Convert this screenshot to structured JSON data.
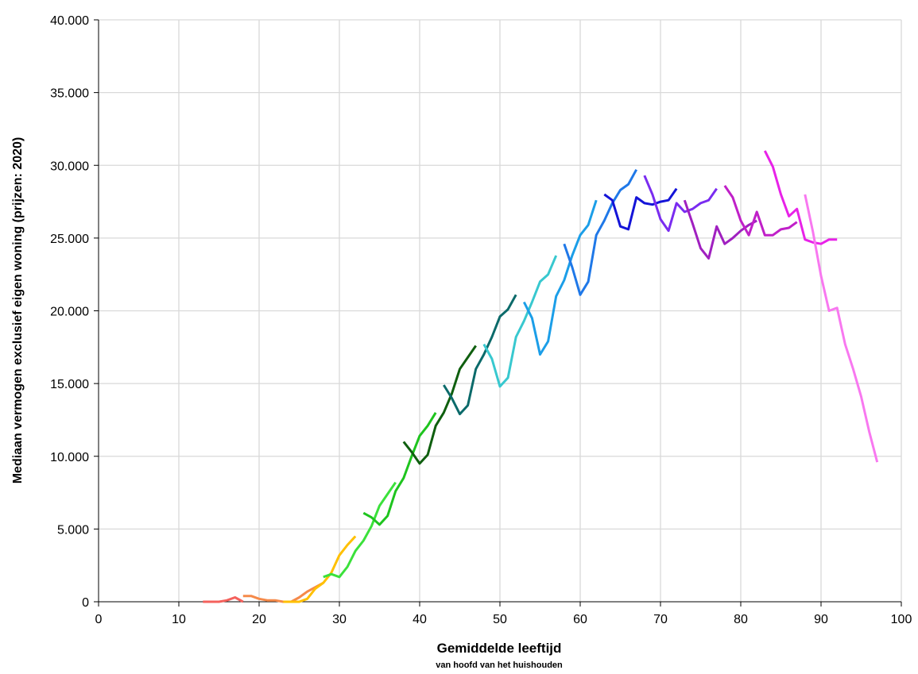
{
  "chart_data": {
    "type": "line",
    "title": "",
    "xlabel": "Gemiddelde leeftijd",
    "xlabel_sub": "van hoofd van het huishouden",
    "ylabel": "Mediaan vermogen exclusief eigen woning (prijzen: 2020)",
    "xlim": [
      0,
      100
    ],
    "ylim": [
      0,
      40000
    ],
    "grid": true,
    "legend": "none",
    "x_ticks": [
      "0",
      "10",
      "20",
      "30",
      "40",
      "50",
      "60",
      "70",
      "80",
      "90",
      "100"
    ],
    "y_ticks": [
      "0",
      "5.000",
      "10.000",
      "15.000",
      "20.000",
      "25.000",
      "30.000",
      "35.000",
      "40.000"
    ],
    "series": [
      {
        "color": "#f4615c",
        "x": [
          13,
          14,
          15,
          16,
          17,
          18
        ],
        "y": [
          0,
          0,
          0,
          100,
          300,
          0
        ]
      },
      {
        "color": "#f58a4a",
        "x": [
          18,
          19,
          20,
          21,
          22,
          23,
          24,
          25,
          26,
          27,
          28
        ],
        "y": [
          400,
          400,
          200,
          100,
          100,
          0,
          0,
          300,
          700,
          1000,
          1300
        ]
      },
      {
        "color": "#ffc000",
        "x": [
          23,
          24,
          25,
          26,
          27,
          28,
          29,
          30,
          31,
          32
        ],
        "y": [
          0,
          0,
          0,
          200,
          900,
          1300,
          2000,
          3200,
          3900,
          4500
        ]
      },
      {
        "color": "#3be13b",
        "x": [
          28,
          29,
          30,
          31,
          32,
          33,
          34,
          35,
          36,
          37
        ],
        "y": [
          1700,
          1900,
          1700,
          2400,
          3500,
          4200,
          5200,
          6600,
          7400,
          8200
        ]
      },
      {
        "color": "#1ec41e",
        "x": [
          33,
          34,
          35,
          36,
          37,
          38,
          39,
          40,
          41,
          42
        ],
        "y": [
          6100,
          5800,
          5300,
          5900,
          7600,
          8500,
          10000,
          11400,
          12100,
          13000
        ]
      },
      {
        "color": "#0f5f0f",
        "x": [
          38,
          39,
          40,
          41,
          42,
          43,
          44,
          45,
          46,
          47
        ],
        "y": [
          11000,
          10300,
          9500,
          10100,
          12100,
          13000,
          14300,
          16000,
          16800,
          17600
        ]
      },
      {
        "color": "#0b6a6a",
        "x": [
          43,
          44,
          45,
          46,
          47,
          48,
          49,
          50,
          51,
          52
        ],
        "y": [
          14900,
          14000,
          12900,
          13500,
          16000,
          17000,
          18200,
          19600,
          20100,
          21100
        ]
      },
      {
        "color": "#38c8cf",
        "x": [
          48,
          49,
          50,
          51,
          52,
          53,
          54,
          55,
          56,
          57
        ],
        "y": [
          17700,
          16700,
          14800,
          15400,
          18200,
          19300,
          20600,
          22000,
          22500,
          23800
        ]
      },
      {
        "color": "#1b9ee8",
        "x": [
          53,
          54,
          55,
          56,
          57,
          58,
          59,
          60,
          61,
          62
        ],
        "y": [
          20600,
          19500,
          17000,
          17900,
          21000,
          22100,
          23800,
          25200,
          25900,
          27600
        ]
      },
      {
        "color": "#1f78e8",
        "x": [
          58,
          59,
          60,
          61,
          62,
          63,
          64,
          65,
          66,
          67
        ],
        "y": [
          24600,
          23000,
          21100,
          22000,
          25200,
          26200,
          27400,
          28300,
          28700,
          29700
        ]
      },
      {
        "color": "#1414d8",
        "x": [
          63,
          64,
          65,
          66,
          67,
          68,
          69,
          70,
          71,
          72
        ],
        "y": [
          28000,
          27600,
          25800,
          25600,
          27800,
          27400,
          27300,
          27500,
          27600,
          28400
        ]
      },
      {
        "color": "#7a2cf0",
        "x": [
          68,
          69,
          70,
          71,
          72,
          73,
          74,
          75,
          76,
          77
        ],
        "y": [
          29300,
          28000,
          26300,
          25500,
          27400,
          26800,
          27000,
          27400,
          27600,
          28400
        ]
      },
      {
        "color": "#a020c0",
        "x": [
          73,
          74,
          75,
          76,
          77,
          78,
          79,
          80,
          81,
          82
        ],
        "y": [
          27600,
          26000,
          24300,
          23600,
          25800,
          24600,
          25000,
          25500,
          25900,
          26200
        ]
      },
      {
        "color": "#c020c8",
        "x": [
          78,
          79,
          80,
          81,
          82,
          83,
          84,
          85,
          86,
          87
        ],
        "y": [
          28600,
          27800,
          26200,
          25200,
          26800,
          25200,
          25200,
          25600,
          25700,
          26100
        ]
      },
      {
        "color": "#e822e8",
        "x": [
          83,
          84,
          85,
          86,
          87,
          88,
          89,
          90,
          91,
          92
        ],
        "y": [
          31000,
          29900,
          28000,
          26500,
          27000,
          24900,
          24700,
          24600,
          24900,
          24900
        ]
      },
      {
        "color": "#f878f0",
        "x": [
          88,
          89,
          90,
          91,
          92,
          93,
          94,
          95,
          96,
          97
        ],
        "y": [
          28000,
          25400,
          22400,
          20000,
          20200,
          17700,
          16000,
          14100,
          11700,
          9600
        ]
      }
    ]
  }
}
